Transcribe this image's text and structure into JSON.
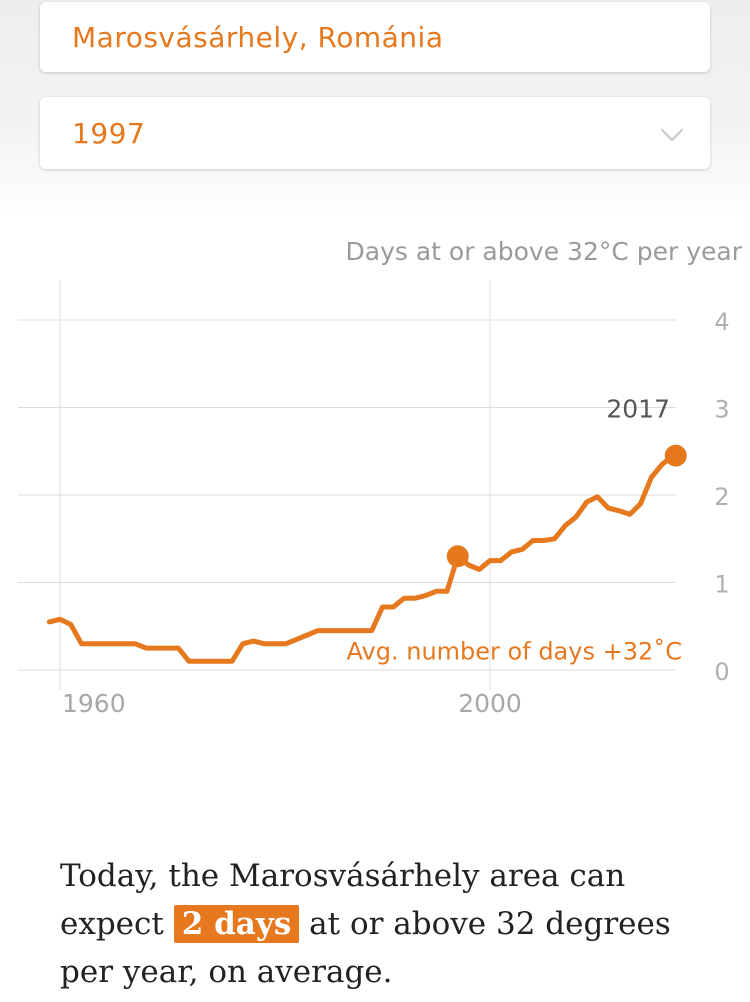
{
  "location": {
    "value": "Marosvásárhely, Románia"
  },
  "year_select": {
    "value": "1997"
  },
  "colors": {
    "accent": "#e6781e",
    "grid": "#dddddd",
    "text_gray": "#9a9a9a"
  },
  "chart_data": {
    "type": "line",
    "ylabel": "Days at or above 32°C per year",
    "ylim": [
      0,
      4
    ],
    "xlim": [
      1959,
      2019
    ],
    "y_ticks": [
      0,
      1,
      2,
      3,
      4
    ],
    "x_ticks": [
      1960,
      2000
    ],
    "x_tick_labels": [
      "1960",
      "2000"
    ],
    "grid": true,
    "series": [
      {
        "name": "Avg. number of days +32˚C",
        "x": [
          1959,
          1960,
          1961,
          1962,
          1963,
          1964,
          1965,
          1966,
          1967,
          1968,
          1969,
          1970,
          1971,
          1972,
          1973,
          1974,
          1975,
          1976,
          1977,
          1978,
          1979,
          1980,
          1981,
          1982,
          1983,
          1984,
          1985,
          1986,
          1987,
          1988,
          1989,
          1990,
          1991,
          1992,
          1993,
          1994,
          1995,
          1996,
          1997,
          1998,
          1999,
          2000,
          2001,
          2002,
          2003,
          2004,
          2005,
          2006,
          2007,
          2008,
          2009,
          2010,
          2011,
          2012,
          2013,
          2014,
          2015,
          2016,
          2017
        ],
        "values": [
          0.55,
          0.58,
          0.52,
          0.3,
          0.3,
          0.3,
          0.3,
          0.3,
          0.3,
          0.25,
          0.25,
          0.25,
          0.25,
          0.1,
          0.1,
          0.1,
          0.1,
          0.1,
          0.3,
          0.33,
          0.3,
          0.3,
          0.3,
          0.35,
          0.4,
          0.45,
          0.45,
          0.45,
          0.45,
          0.45,
          0.45,
          0.72,
          0.72,
          0.82,
          0.82,
          0.85,
          0.9,
          0.9,
          1.3,
          1.2,
          1.15,
          1.25,
          1.25,
          1.35,
          1.38,
          1.48,
          1.48,
          1.5,
          1.65,
          1.75,
          1.92,
          1.98,
          1.85,
          1.82,
          1.78,
          1.9,
          2.2,
          2.35,
          2.45
        ]
      }
    ],
    "highlight_point": {
      "x": 1997,
      "y": 1.3
    },
    "end_point": {
      "x": 2017,
      "y": 2.45,
      "label": "2017"
    }
  },
  "summary": {
    "before": "Today, the Marosvásárhely area can expect ",
    "highlight": "2 days",
    "after": " at or above 32 degrees per year, on average."
  }
}
